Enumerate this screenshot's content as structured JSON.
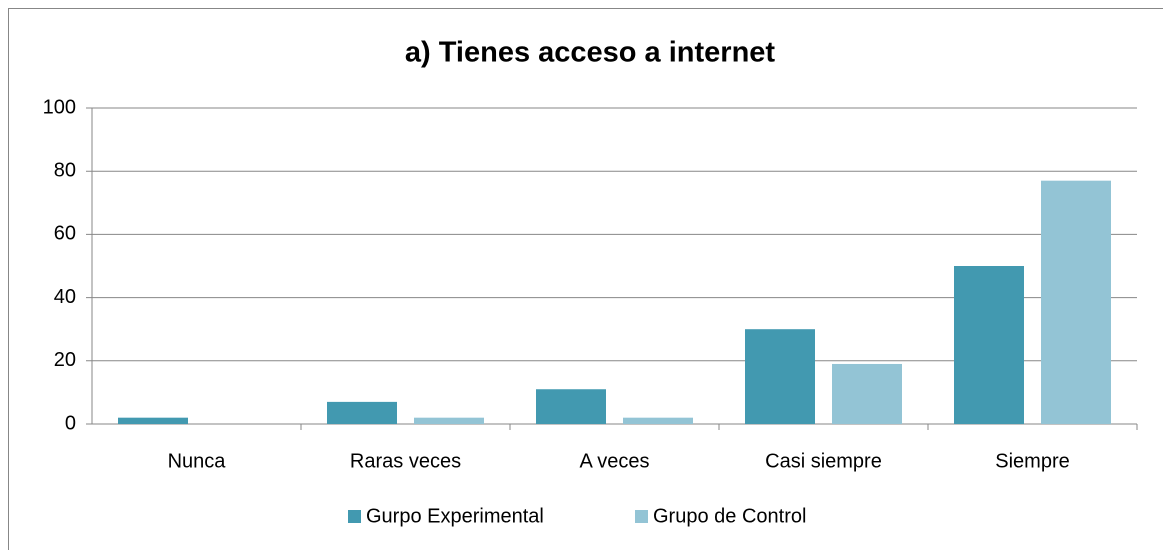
{
  "chart_data": {
    "type": "bar",
    "title": "a) Tienes acceso a internet",
    "categories": [
      "Nunca",
      "Raras veces",
      "A veces",
      "Casi siempre",
      "Siempre"
    ],
    "series": [
      {
        "name": "Gurpo Experimental",
        "color": "#4299b0",
        "values": [
          2,
          7,
          11,
          30,
          50
        ]
      },
      {
        "name": "Grupo de Control",
        "color": "#93c4d5",
        "values": [
          0,
          2,
          2,
          19,
          77
        ]
      }
    ],
    "ylim": [
      0,
      100
    ],
    "yticks": [
      0,
      20,
      40,
      60,
      80,
      100
    ],
    "grid": true,
    "legend": "bottom"
  }
}
